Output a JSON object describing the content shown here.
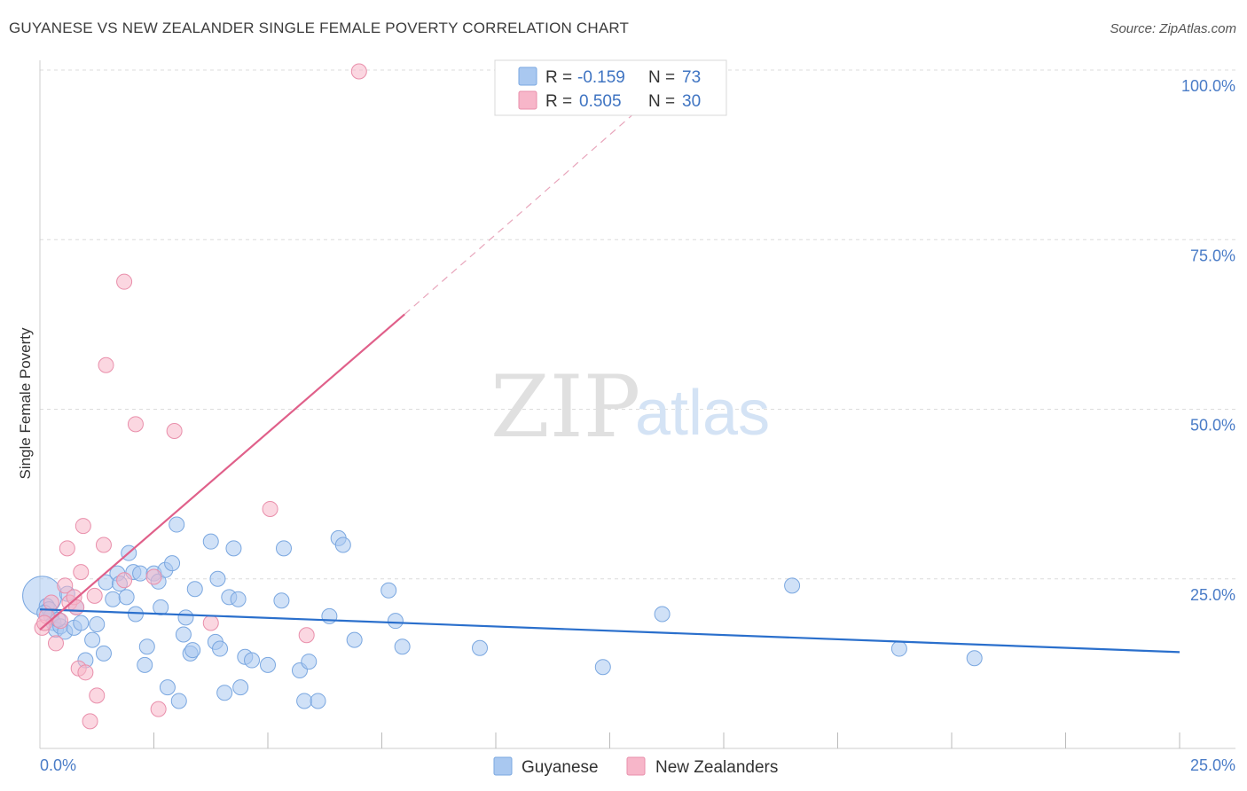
{
  "header": {
    "title": "GUYANESE VS NEW ZEALANDER SINGLE FEMALE POVERTY CORRELATION CHART",
    "source": "Source: ZipAtlas.com"
  },
  "watermark": {
    "part1": "ZIP",
    "part2": "atlas"
  },
  "legend_top": {
    "rows": [
      {
        "r_label": "R =",
        "r_value": "-0.159",
        "n_label": "N =",
        "n_value": "73",
        "color": "#a9c8f0"
      },
      {
        "r_label": "R =",
        "r_value": "0.505",
        "n_label": "N =",
        "n_value": "30",
        "color": "#f7b6c9"
      }
    ]
  },
  "chart_data": {
    "type": "scatter",
    "xlabel": "",
    "ylabel": "Single Female Poverty",
    "xlim": [
      0,
      25
    ],
    "ylim": [
      0,
      100
    ],
    "x_tick_labels": [
      "0.0%",
      "25.0%"
    ],
    "y_tick_labels": [
      "25.0%",
      "50.0%",
      "75.0%",
      "100.0%"
    ],
    "y_ticks": [
      25,
      50,
      75,
      100
    ],
    "grid": "horizontal dashed",
    "legend_position": "bottom-center",
    "series": [
      {
        "name": "Guyanese",
        "color": "#a9c8f0",
        "stroke": "#7aa7e0",
        "trend_color": "#2a6fcc",
        "trend": {
          "x0": 0,
          "y0": 20.5,
          "x1": 25,
          "y1": 14.2
        },
        "points": [
          [
            0.05,
            22.5
          ],
          [
            0.15,
            21.0
          ],
          [
            0.2,
            20.5
          ],
          [
            0.25,
            19.5
          ],
          [
            0.3,
            18.5
          ],
          [
            0.35,
            17.5
          ],
          [
            0.45,
            18.0
          ],
          [
            0.55,
            17.2
          ],
          [
            0.6,
            22.8
          ],
          [
            0.75,
            17.8
          ],
          [
            0.8,
            20.8
          ],
          [
            0.9,
            18.5
          ],
          [
            1.0,
            13.0
          ],
          [
            1.15,
            16.0
          ],
          [
            1.4,
            14.0
          ],
          [
            1.25,
            18.3
          ],
          [
            1.45,
            24.5
          ],
          [
            1.6,
            22.0
          ],
          [
            1.7,
            25.8
          ],
          [
            1.75,
            24.3
          ],
          [
            1.9,
            22.3
          ],
          [
            1.95,
            28.8
          ],
          [
            2.05,
            26.0
          ],
          [
            2.1,
            19.8
          ],
          [
            2.2,
            25.8
          ],
          [
            2.3,
            12.3
          ],
          [
            2.35,
            15.0
          ],
          [
            2.5,
            25.8
          ],
          [
            2.6,
            24.6
          ],
          [
            2.65,
            20.8
          ],
          [
            2.75,
            26.3
          ],
          [
            2.8,
            9.0
          ],
          [
            2.9,
            27.3
          ],
          [
            3.0,
            33.0
          ],
          [
            3.05,
            7.0
          ],
          [
            3.15,
            16.8
          ],
          [
            3.2,
            19.3
          ],
          [
            3.3,
            14.0
          ],
          [
            3.35,
            14.5
          ],
          [
            3.4,
            23.5
          ],
          [
            3.75,
            30.5
          ],
          [
            3.85,
            15.7
          ],
          [
            3.9,
            25.0
          ],
          [
            3.95,
            14.7
          ],
          [
            4.05,
            8.2
          ],
          [
            4.15,
            22.3
          ],
          [
            4.25,
            29.5
          ],
          [
            4.35,
            22.0
          ],
          [
            4.4,
            9.0
          ],
          [
            4.5,
            13.5
          ],
          [
            4.65,
            13.0
          ],
          [
            5.0,
            12.3
          ],
          [
            5.3,
            21.8
          ],
          [
            5.35,
            29.5
          ],
          [
            5.7,
            11.5
          ],
          [
            5.8,
            7.0
          ],
          [
            5.9,
            12.8
          ],
          [
            6.1,
            7.0
          ],
          [
            6.35,
            19.5
          ],
          [
            6.55,
            31.0
          ],
          [
            6.65,
            30.0
          ],
          [
            6.9,
            16.0
          ],
          [
            7.65,
            23.3
          ],
          [
            7.8,
            18.8
          ],
          [
            7.95,
            15.0
          ],
          [
            9.65,
            14.8
          ],
          [
            12.35,
            12.0
          ],
          [
            13.65,
            19.8
          ],
          [
            16.5,
            24.0
          ],
          [
            18.85,
            14.7
          ],
          [
            20.5,
            13.3
          ],
          [
            0.1,
            20.0
          ],
          [
            0.4,
            19.0
          ]
        ]
      },
      {
        "name": "New Zealanders",
        "color": "#f7b6c9",
        "stroke": "#e98fab",
        "trend_color": "#e0608a",
        "trend": {
          "x0": 0,
          "y0": 17.5,
          "x1": 8.0,
          "y1": 64.0
        },
        "trend_dashed": {
          "x0": 8.0,
          "y0": 64.0,
          "x1": 13.1,
          "y1": 94.0
        },
        "points": [
          [
            0.05,
            17.8
          ],
          [
            0.15,
            19.5
          ],
          [
            0.25,
            21.5
          ],
          [
            0.35,
            15.5
          ],
          [
            0.45,
            18.8
          ],
          [
            0.55,
            24.0
          ],
          [
            0.6,
            29.5
          ],
          [
            0.65,
            21.5
          ],
          [
            0.75,
            22.3
          ],
          [
            0.8,
            20.8
          ],
          [
            0.85,
            11.8
          ],
          [
            0.9,
            26.0
          ],
          [
            0.95,
            32.8
          ],
          [
            1.0,
            11.2
          ],
          [
            1.1,
            4.0
          ],
          [
            1.2,
            22.5
          ],
          [
            1.25,
            7.8
          ],
          [
            1.4,
            30.0
          ],
          [
            1.45,
            56.5
          ],
          [
            1.85,
            24.8
          ],
          [
            1.85,
            68.8
          ],
          [
            2.1,
            47.8
          ],
          [
            2.5,
            25.3
          ],
          [
            2.6,
            5.8
          ],
          [
            2.95,
            46.8
          ],
          [
            3.75,
            18.5
          ],
          [
            5.05,
            35.3
          ],
          [
            5.85,
            16.7
          ],
          [
            7.0,
            99.8
          ],
          [
            0.1,
            18.5
          ]
        ]
      }
    ]
  }
}
